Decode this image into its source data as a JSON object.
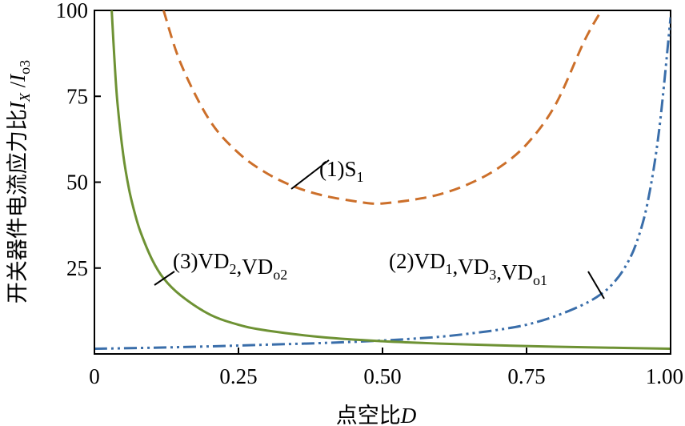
{
  "chart_data": {
    "type": "line",
    "xlabel_prefix": "点空比",
    "xlabel_var": "D",
    "ylabel_prefix": "开关器件电流应力比",
    "ylabel_var": "I",
    "ylabel_var_sub": "X",
    "ylabel_slash": " /",
    "ylabel_var2": "I",
    "ylabel_var2_sub": "o3",
    "xlim": [
      0,
      1.0
    ],
    "ylim": [
      0,
      100
    ],
    "x_ticks": [
      {
        "value": 0,
        "label": "0"
      },
      {
        "value": 0.25,
        "label": "0.25"
      },
      {
        "value": 0.5,
        "label": "0.50"
      },
      {
        "value": 0.75,
        "label": "0.75"
      },
      {
        "value": 1.0,
        "label": "1.00"
      }
    ],
    "y_ticks": [
      {
        "value": 25,
        "label": "25"
      },
      {
        "value": 50,
        "label": "50"
      },
      {
        "value": 75,
        "label": "75"
      },
      {
        "value": 100,
        "label": "100"
      }
    ],
    "grid": false,
    "series": [
      {
        "id": "s1",
        "color": "#cc6f2a",
        "dash": "dashed",
        "annotation": {
          "prefix": "(1)",
          "parts": [
            [
              "S",
              "1"
            ]
          ]
        },
        "x": [
          0.12,
          0.15,
          0.2,
          0.25,
          0.3,
          0.35,
          0.4,
          0.45,
          0.48,
          0.5,
          0.55,
          0.6,
          0.65,
          0.7,
          0.75,
          0.8,
          0.85,
          0.88
        ],
        "y": [
          100,
          84.5,
          68,
          58.5,
          52.5,
          48.5,
          46,
          44.5,
          43.8,
          43.8,
          44.8,
          46.5,
          49.5,
          54,
          61,
          72.5,
          91,
          100
        ]
      },
      {
        "id": "s2",
        "color": "#3a6eaa",
        "dash": "dash-dot-dot",
        "annotation": {
          "prefix": "(2)",
          "parts": [
            [
              "VD",
              "1"
            ],
            [
              "VD",
              "3"
            ],
            [
              "VD",
              "o1"
            ]
          ]
        },
        "x": [
          0,
          0.1,
          0.2,
          0.3,
          0.4,
          0.5,
          0.55,
          0.6,
          0.65,
          0.7,
          0.75,
          0.8,
          0.85,
          0.88,
          0.9,
          0.92,
          0.94,
          0.96,
          0.98,
          1.0
        ],
        "y": [
          1.5,
          1.8,
          2.2,
          2.7,
          3.2,
          3.9,
          4.4,
          5,
          5.9,
          7,
          8.5,
          11,
          14.5,
          17.5,
          20.5,
          25,
          32,
          44,
          65,
          98
        ]
      },
      {
        "id": "s3",
        "color": "#6e9234",
        "dash": "solid",
        "annotation": {
          "prefix": "(3)",
          "parts": [
            [
              "VD",
              "2"
            ],
            [
              "VD",
              "o2"
            ]
          ]
        },
        "x": [
          0.03,
          0.035,
          0.04,
          0.05,
          0.06,
          0.07,
          0.08,
          0.1,
          0.12,
          0.15,
          0.2,
          0.25,
          0.3,
          0.4,
          0.5,
          0.6,
          0.7,
          0.8,
          0.9,
          1.0
        ],
        "y": [
          100,
          85,
          73,
          58,
          48,
          41,
          35.5,
          27.5,
          22,
          17,
          11.5,
          8.5,
          6.8,
          4.8,
          3.7,
          3,
          2.5,
          2.1,
          1.8,
          1.5
        ]
      }
    ]
  }
}
